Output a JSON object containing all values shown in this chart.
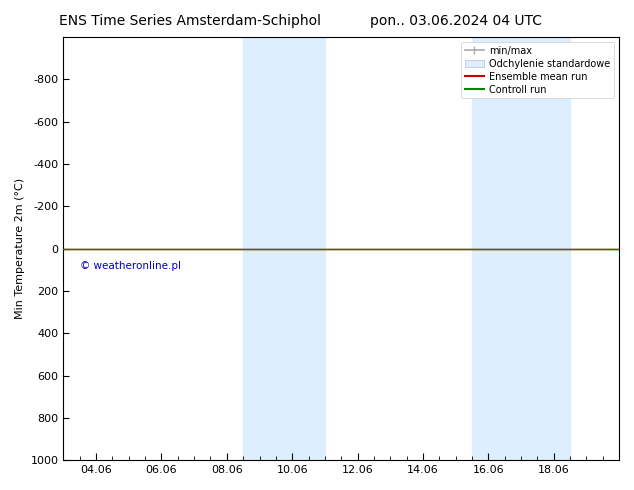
{
  "title_left": "ENS Time Series Amsterdam-Schiphol",
  "title_right": "pon.. 03.06.2024 04 UTC",
  "ylabel": "Min Temperature 2m (°C)",
  "xlabel_ticks": [
    "04.06",
    "06.06",
    "08.06",
    "10.06",
    "12.06",
    "14.06",
    "16.06",
    "18.06"
  ],
  "x_numeric": [
    3,
    5,
    7,
    9,
    11,
    13,
    15,
    17
  ],
  "xlim": [
    2,
    19
  ],
  "ylim_bottom": 1000,
  "ylim_top": -1000,
  "yticks": [
    -800,
    -600,
    -400,
    -200,
    0,
    200,
    400,
    600,
    800,
    1000
  ],
  "shaded_regions": [
    {
      "xmin": 7.5,
      "xmax": 10.0,
      "color": "#ddeeff"
    },
    {
      "xmin": 14.5,
      "xmax": 17.5,
      "color": "#ddeeff"
    }
  ],
  "line_y": 0,
  "green_color": "#008800",
  "red_color": "#cc0000",
  "watermark": "© weatheronline.pl",
  "watermark_color": "#0000cc",
  "background_color": "#ffffff",
  "legend_items": [
    {
      "label": "min/max",
      "color": "#aaaaaa"
    },
    {
      "label": "Odchylenie standardowe",
      "color": "#ddeeff"
    },
    {
      "label": "Ensemble mean run",
      "color": "#cc0000"
    },
    {
      "label": "Controll run",
      "color": "#008800"
    }
  ],
  "title_fontsize": 10,
  "tick_fontsize": 8,
  "ylabel_fontsize": 8
}
